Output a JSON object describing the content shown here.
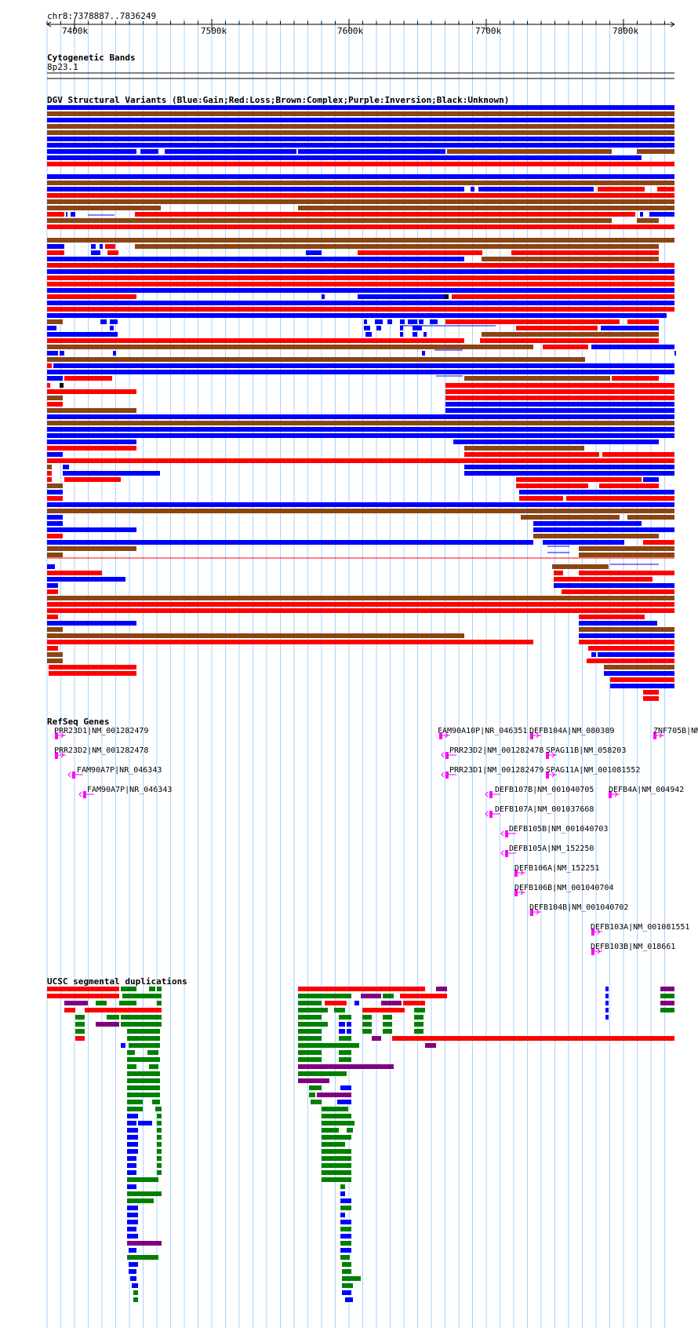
{
  "ruler": {
    "position": "chr8:7378887..7836249",
    "ticks": [
      "7400k",
      "7500k",
      "7600k",
      "7700k",
      "7800k"
    ]
  },
  "tracks": {
    "cytoband": {
      "title": "Cytogenetic Bands",
      "band": "8p23.1"
    },
    "dgv": {
      "title": "DGV Structural Variants (Blue:Gain;Red:Loss;Brown:Complex;Purple:Inversion;Black:Unknown)"
    },
    "refseq": {
      "title": "RefSeq Genes"
    },
    "segdup": {
      "title": "UCSC segmental duplications"
    }
  },
  "colors": {
    "gain": "#0000ff",
    "loss": "#ff0000",
    "complex": "#8b4513",
    "inversion": "#800080",
    "unknown": "#000000",
    "gene": "#ff00ff",
    "segdup_green": "#008000",
    "grid": "#a8d4ff"
  },
  "genes": [
    {
      "label": "PRR23D1|NM_001282479"
    },
    {
      "label": "PRR23D2|NM_001282478"
    },
    {
      "label": "FAM90A7P|NR_046343"
    },
    {
      "label": "FAM90A7P|NR_046343"
    },
    {
      "label": "FAM90A10P|NR_046351"
    },
    {
      "label": "DEFB104A|NM_080389"
    },
    {
      "label": "ZNF705B|NM"
    },
    {
      "label": "PRR23D2|NM_001282478"
    },
    {
      "label": "SPAG11B|NM_058203"
    },
    {
      "label": "PRR23D1|NM_001282479"
    },
    {
      "label": "SPAG11A|NM_001081552"
    },
    {
      "label": "DEFB107B|NM_001040705"
    },
    {
      "label": "DEFB4A|NM_004942"
    },
    {
      "label": "DEFB107A|NM_001037668"
    },
    {
      "label": "DEFB105B|NM_001040703"
    },
    {
      "label": "DEFB105A|NM_152250"
    },
    {
      "label": "DEFB106A|NM_152251"
    },
    {
      "label": "DEFB106B|NM_001040704"
    },
    {
      "label": "DEFB104B|NM_001040702"
    },
    {
      "label": "DEFB103A|NM_001081551"
    },
    {
      "label": "DEFB103B|NM_018661"
    }
  ]
}
